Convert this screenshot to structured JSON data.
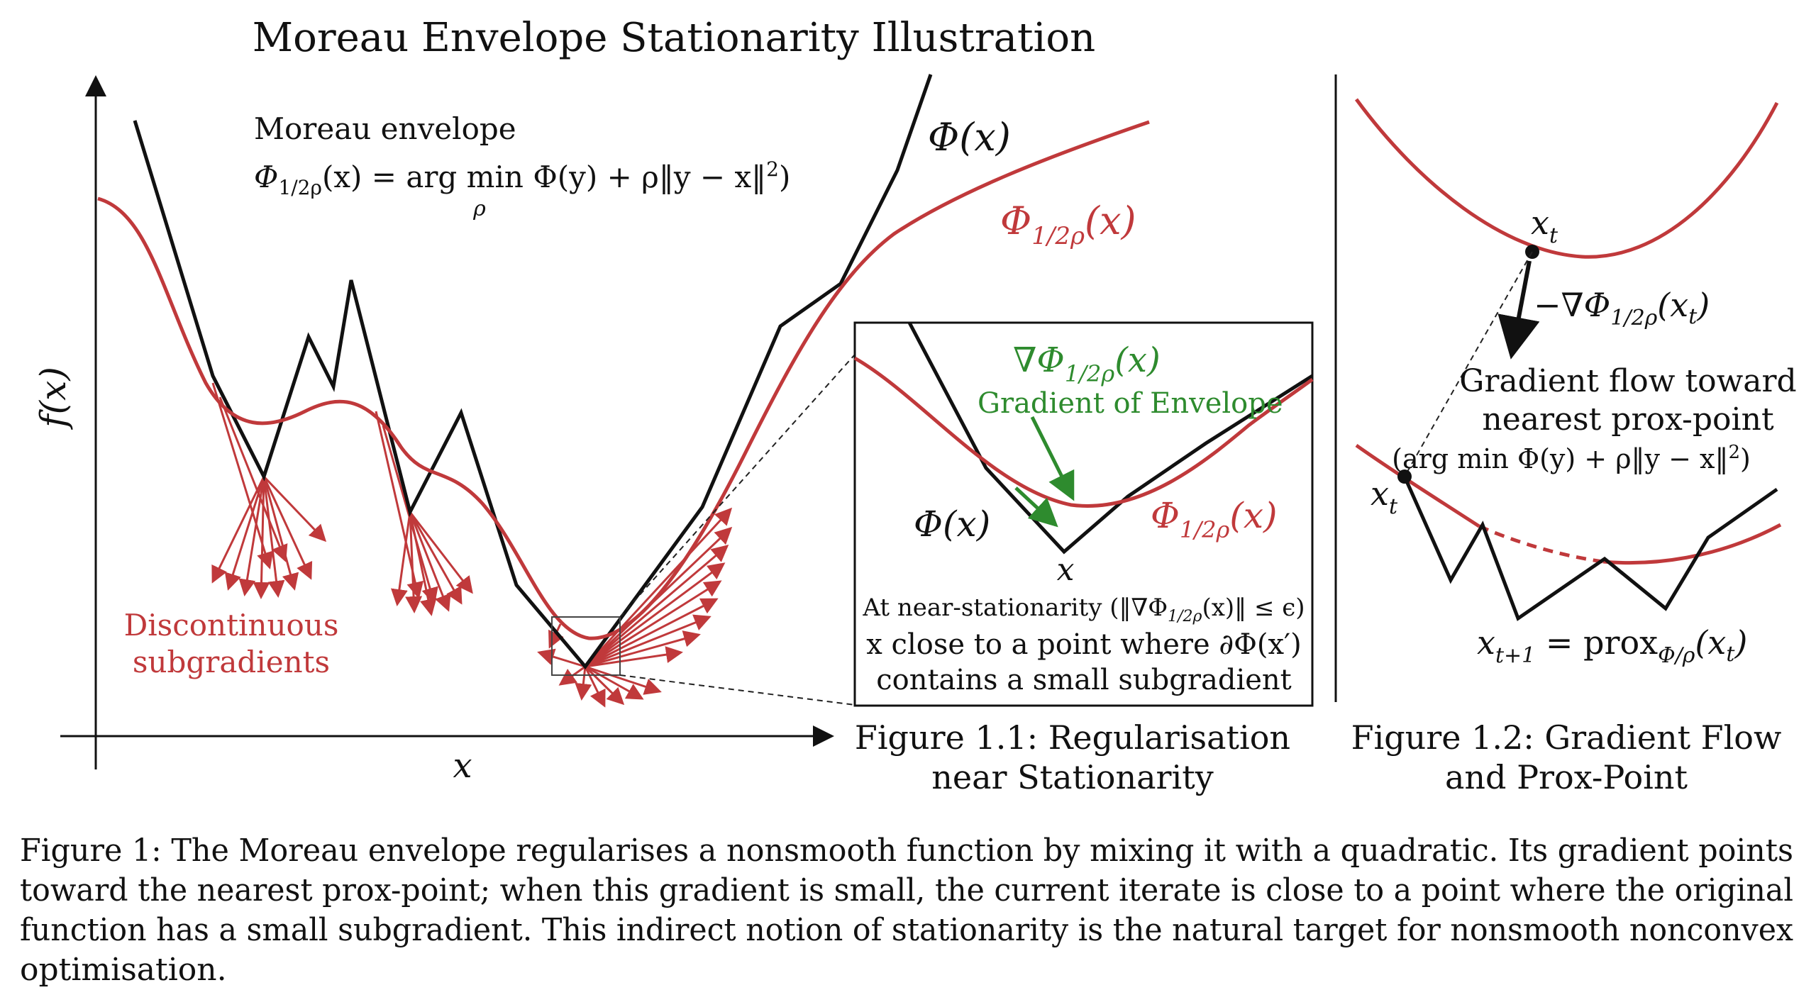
{
  "title": "Moreau Envelope Stationarity Illustration",
  "main_panel": {
    "y_axis_label": "f(x)",
    "x_axis_label": "x",
    "moreau_label": "Moreau envelope",
    "formula_lhs": "Φ",
    "formula_lhs_sub": "1/2ρ",
    "formula_lhs_arg": "(x) = arg min Φ(y) + ρ‖y − x‖",
    "formula_sq": "2",
    "formula_close": ")",
    "formula_under": "ρ",
    "phi_label": "Φ(x)",
    "env_label_main": "Φ",
    "env_label_sub": "1/2ρ",
    "env_label_arg": "(x)",
    "discontinuous_line1": "Discontinuous",
    "discontinuous_line2": "subgradients"
  },
  "inset": {
    "grad_label_main": "∇Φ",
    "grad_label_sub": "1/2ρ",
    "grad_label_arg": "(x)",
    "grad_caption": "Gradient of Envelope",
    "phi_label": "Φ(x)",
    "env_label_main": "Φ",
    "env_label_sub": "1/2ρ",
    "env_label_arg": "(x)",
    "x_label": "x",
    "note_line1_pre": "At near-stationarity (‖∇Φ",
    "note_line1_sub": "1/2ρ",
    "note_line1_post": "(x)‖ ≤ ϵ)",
    "note_line2": "x close to a point where ∂Φ(x′)",
    "note_line3": "contains a small subgradient"
  },
  "right_panel": {
    "xt_top": "x",
    "xt_top_sub": "t",
    "grad_main": "−∇Φ",
    "grad_sub": "1/2ρ",
    "grad_arg": "(x",
    "grad_arg_sub": "t",
    "grad_close": ")",
    "flow_line1": "Gradient flow toward",
    "flow_line2": "nearest prox-point",
    "flow_line3": "(arg min Φ(y) + ρ‖y − x‖",
    "flow_sq": "2",
    "flow_close": ")",
    "xt_bottom": "x",
    "xt_bottom_sub": "t",
    "prox_lhs": "x",
    "prox_lhs_sub": "t+1",
    "prox_mid": " = prox",
    "prox_sub": "Φ/ρ",
    "prox_arg": "(x",
    "prox_arg_sub": "t",
    "prox_close": ")"
  },
  "captions": {
    "fig11_line1": "Figure 1.1: Regularisation",
    "fig11_line2": "near Stationarity",
    "fig12_line1": "Figure 1.2: Gradient Flow",
    "fig12_line2": "and Prox-Point",
    "main_line1": "Figure 1: The Moreau envelope regularises a nonsmooth function by mixing it with a quadratic. Its gradient points",
    "main_line2": "toward the nearest prox-point; when this gradient is small, the current iterate is close to a point where the original",
    "main_line3": "function has a small subgradient. This indirect notion of stationarity is the natural target for nonsmooth nonconvex",
    "main_line4": "optimisation."
  },
  "colors": {
    "black_curve": "#111111",
    "red_curve": "#c0393b",
    "green_arrow": "#2e8b2e"
  }
}
